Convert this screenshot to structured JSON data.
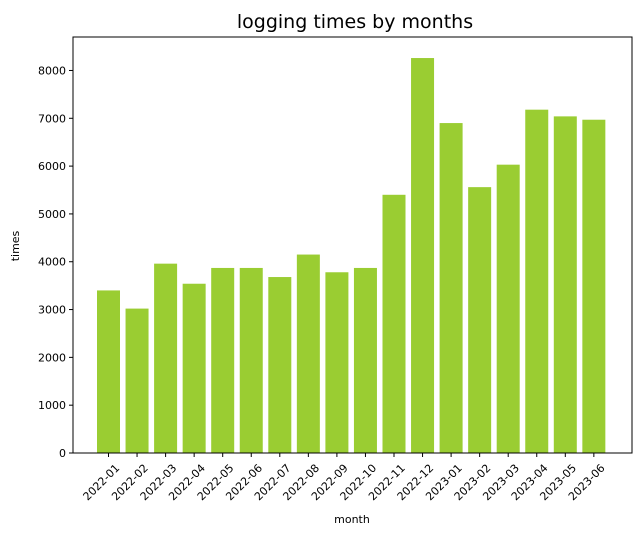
{
  "chart_data": {
    "type": "bar",
    "title": "logging times by months",
    "xlabel": "month",
    "ylabel": "times",
    "categories": [
      "2022-01",
      "2022-02",
      "2022-03",
      "2022-04",
      "2022-05",
      "2022-06",
      "2022-07",
      "2022-08",
      "2022-09",
      "2022-10",
      "2022-11",
      "2022-12",
      "2023-01",
      "2023-02",
      "2023-03",
      "2023-04",
      "2023-05",
      "2023-06"
    ],
    "values": [
      3400,
      3020,
      3960,
      3540,
      3870,
      3870,
      3680,
      4150,
      3780,
      3870,
      5400,
      8260,
      6900,
      5560,
      6030,
      7180,
      7040,
      6970
    ],
    "ylim": [
      0,
      8700
    ],
    "yticks": [
      0,
      1000,
      2000,
      3000,
      4000,
      5000,
      6000,
      7000,
      8000
    ],
    "bar_color": "#9acd32",
    "grid": false,
    "legend": "none"
  }
}
